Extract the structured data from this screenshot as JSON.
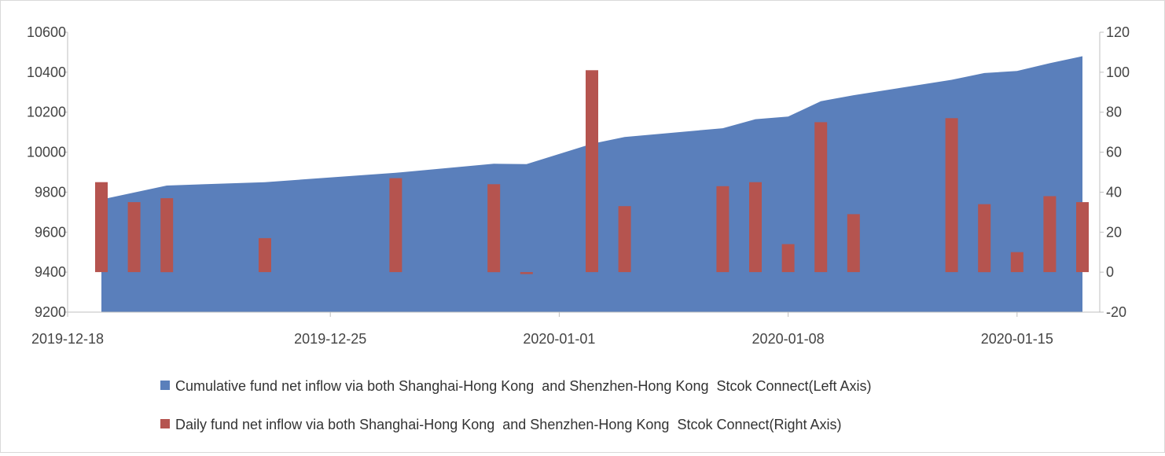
{
  "chart_data": {
    "type": "bar+area",
    "title": "",
    "colors": {
      "cumulative": "#5A7FBB",
      "daily": "#B5544F",
      "axis": "#BFBFBF",
      "text": "#444444"
    },
    "x_ticks": [
      "2019-12-18",
      "2019-12-25",
      "2020-01-01",
      "2020-01-08",
      "2020-01-15"
    ],
    "left_axis": {
      "ylim": [
        9200,
        10600
      ],
      "ticks": [
        "9200",
        "9400",
        "9600",
        "9800",
        "10000",
        "10200",
        "10400",
        "10600"
      ]
    },
    "right_axis": {
      "ylim": [
        -20,
        120
      ],
      "ticks": [
        "-20",
        "0",
        "20",
        "40",
        "60",
        "80",
        "100",
        "120"
      ]
    },
    "series": [
      {
        "name": "Cumulative fund net inflow via both Shanghai-Hong Kong  and Shenzhen-Hong Kong  Stcok Connect(Left Axis)",
        "type": "area",
        "axis": "left",
        "x": [
          "2019-12-18",
          "2019-12-19",
          "2019-12-20",
          "2019-12-23",
          "2019-12-27",
          "2019-12-30",
          "2019-12-31",
          "2020-01-02",
          "2020-01-03",
          "2020-01-06",
          "2020-01-07",
          "2020-01-08",
          "2020-01-09",
          "2020-01-10",
          "2020-01-13",
          "2020-01-14",
          "2020-01-15",
          "2020-01-16",
          "2020-01-17"
        ],
        "values": [
          9763,
          9798,
          9833,
          9850,
          9897,
          9942,
          9940,
          10042,
          10076,
          10120,
          10165,
          10178,
          10255,
          10285,
          10362,
          10396,
          10406,
          10445,
          10480
        ]
      },
      {
        "name": "Daily fund net inflow via both Shanghai-Hong Kong  and Shenzhen-Hong Kong  Stcok Connect(Right Axis)",
        "type": "bar",
        "axis": "right",
        "x": [
          "2019-12-18",
          "2019-12-19",
          "2019-12-20",
          "2019-12-23",
          "2019-12-27",
          "2019-12-30",
          "2019-12-31",
          "2020-01-02",
          "2020-01-03",
          "2020-01-06",
          "2020-01-07",
          "2020-01-08",
          "2020-01-09",
          "2020-01-10",
          "2020-01-13",
          "2020-01-14",
          "2020-01-15",
          "2020-01-16",
          "2020-01-17"
        ],
        "values": [
          45,
          35,
          37,
          17,
          47,
          44,
          -1,
          101,
          33,
          43,
          45,
          14,
          75,
          29,
          77,
          34,
          10,
          38,
          35
        ]
      }
    ],
    "grid": false,
    "legend_position": "bottom"
  }
}
